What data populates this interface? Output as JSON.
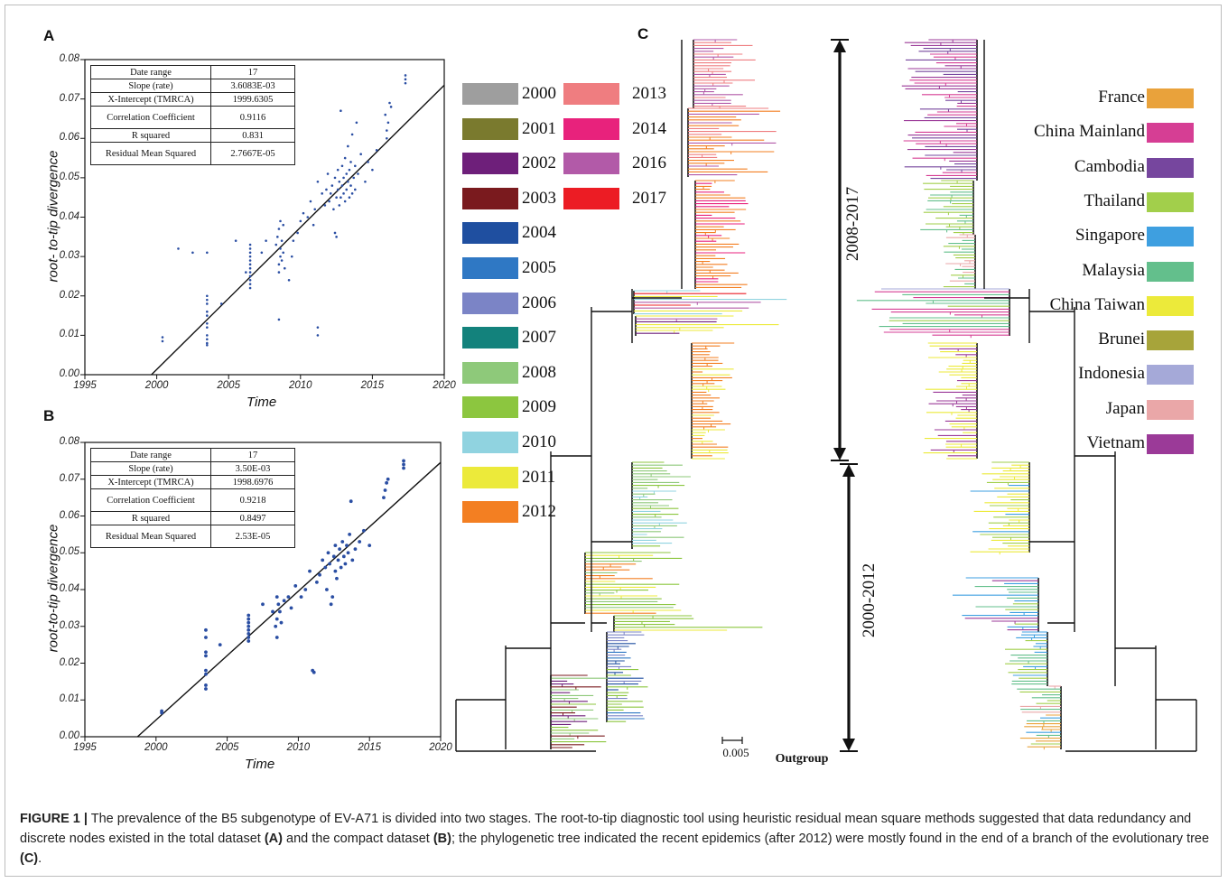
{
  "panels": {
    "A": {
      "letter": "A",
      "stats": [
        [
          "Date range",
          "17"
        ],
        [
          "Slope (rate)",
          "3.6083E-03"
        ],
        [
          "X-Intercept (TMRCA)",
          "1999.6305"
        ],
        [
          "Correlation Coefficient",
          "0.9116"
        ],
        [
          "R squared",
          "0.831"
        ],
        [
          "Residual Mean Squared",
          "2.7667E-05"
        ]
      ]
    },
    "B": {
      "letter": "B",
      "stats": [
        [
          "Date range",
          "17"
        ],
        [
          "Slope (rate)",
          "3.50E-03"
        ],
        [
          "X-Intercept (TMRCA)",
          "1998.6976"
        ],
        [
          "Correlation Coefficient",
          "0.9218"
        ],
        [
          "R squared",
          "0.8497"
        ],
        [
          "Residual Mean Squared",
          "2.53E-05"
        ]
      ]
    },
    "C": {
      "letter": "C"
    }
  },
  "chart_data": [
    {
      "type": "scatter",
      "panel": "A",
      "xlabel": "Time",
      "ylabel": "root- to-tip divergence",
      "xlim": [
        1995,
        2020
      ],
      "ylim": [
        0,
        0.08
      ],
      "xticks": [
        "1995",
        "2000",
        "2005",
        "2010",
        "2015",
        "2020"
      ],
      "yticks": [
        "0.00",
        "0.01",
        "0.02",
        "0.03",
        "0.04",
        "0.05",
        "0.06",
        "0.07",
        "0.08"
      ],
      "regression": {
        "slope": 0.0036083,
        "x_intercept": 1999.6305
      },
      "points": [
        [
          2000.4,
          0.0085
        ],
        [
          2000.4,
          0.0095
        ],
        [
          2001.5,
          0.032
        ],
        [
          2002.5,
          0.031
        ],
        [
          2003.5,
          0.031
        ],
        [
          2003.5,
          0.02
        ],
        [
          2003.5,
          0.019
        ],
        [
          2003.5,
          0.018
        ],
        [
          2003.5,
          0.016
        ],
        [
          2003.5,
          0.015
        ],
        [
          2003.5,
          0.013
        ],
        [
          2003.5,
          0.012
        ],
        [
          2003.5,
          0.01
        ],
        [
          2003.5,
          0.009
        ],
        [
          2003.5,
          0.008
        ],
        [
          2003.5,
          0.0075
        ],
        [
          2004.5,
          0.018
        ],
        [
          2005.5,
          0.034
        ],
        [
          2006.2,
          0.026
        ],
        [
          2006.5,
          0.022
        ],
        [
          2006.5,
          0.023
        ],
        [
          2006.5,
          0.024
        ],
        [
          2006.5,
          0.025
        ],
        [
          2006.5,
          0.026
        ],
        [
          2006.5,
          0.027
        ],
        [
          2006.5,
          0.028
        ],
        [
          2006.5,
          0.029
        ],
        [
          2006.5,
          0.03
        ],
        [
          2006.5,
          0.031
        ],
        [
          2006.5,
          0.032
        ],
        [
          2006.5,
          0.033
        ],
        [
          2007.3,
          0.031
        ],
        [
          2007.6,
          0.034
        ],
        [
          2008.3,
          0.033
        ],
        [
          2008.4,
          0.035
        ],
        [
          2008.5,
          0.037
        ],
        [
          2008.5,
          0.028
        ],
        [
          2008.5,
          0.026
        ],
        [
          2008.6,
          0.03
        ],
        [
          2008.6,
          0.032
        ],
        [
          2008.6,
          0.039
        ],
        [
          2008.7,
          0.034
        ],
        [
          2008.7,
          0.029
        ],
        [
          2008.8,
          0.031
        ],
        [
          2008.8,
          0.038
        ],
        [
          2008.9,
          0.027
        ],
        [
          2008.5,
          0.014
        ],
        [
          2009.2,
          0.024
        ],
        [
          2009.4,
          0.03
        ],
        [
          2009.5,
          0.034
        ],
        [
          2009.8,
          0.036
        ],
        [
          2010.0,
          0.039
        ],
        [
          2010.2,
          0.041
        ],
        [
          2010.5,
          0.04
        ],
        [
          2010.7,
          0.044
        ],
        [
          2010.9,
          0.038
        ],
        [
          2011.0,
          0.042
        ],
        [
          2011.2,
          0.049
        ],
        [
          2011.2,
          0.01
        ],
        [
          2011.2,
          0.012
        ],
        [
          2011.5,
          0.046
        ],
        [
          2011.7,
          0.043
        ],
        [
          2011.8,
          0.047
        ],
        [
          2011.9,
          0.051
        ],
        [
          2012.0,
          0.044
        ],
        [
          2012.1,
          0.046
        ],
        [
          2012.2,
          0.048
        ],
        [
          2012.3,
          0.042
        ],
        [
          2012.4,
          0.05
        ],
        [
          2012.4,
          0.036
        ],
        [
          2012.5,
          0.035
        ],
        [
          2012.5,
          0.045
        ],
        [
          2012.6,
          0.047
        ],
        [
          2012.6,
          0.052
        ],
        [
          2012.7,
          0.043
        ],
        [
          2012.7,
          0.049
        ],
        [
          2012.8,
          0.067
        ],
        [
          2012.8,
          0.045
        ],
        [
          2012.9,
          0.048
        ],
        [
          2012.9,
          0.053
        ],
        [
          2013.0,
          0.046
        ],
        [
          2013.0,
          0.05
        ],
        [
          2013.1,
          0.044
        ],
        [
          2013.1,
          0.055
        ],
        [
          2013.2,
          0.047
        ],
        [
          2013.2,
          0.051
        ],
        [
          2013.3,
          0.049
        ],
        [
          2013.3,
          0.058
        ],
        [
          2013.4,
          0.045
        ],
        [
          2013.4,
          0.052
        ],
        [
          2013.5,
          0.048
        ],
        [
          2013.5,
          0.054
        ],
        [
          2013.6,
          0.046
        ],
        [
          2013.6,
          0.061
        ],
        [
          2013.7,
          0.05
        ],
        [
          2013.8,
          0.053
        ],
        [
          2013.8,
          0.047
        ],
        [
          2013.9,
          0.064
        ],
        [
          2014.0,
          0.051
        ],
        [
          2014.2,
          0.056
        ],
        [
          2014.5,
          0.049
        ],
        [
          2014.7,
          0.054
        ],
        [
          2015.0,
          0.052
        ],
        [
          2015.3,
          0.057
        ],
        [
          2015.9,
          0.066
        ],
        [
          2016.0,
          0.06
        ],
        [
          2016.0,
          0.062
        ],
        [
          2016.1,
          0.064
        ],
        [
          2016.2,
          0.069
        ],
        [
          2016.3,
          0.068
        ],
        [
          2017.3,
          0.074
        ],
        [
          2017.3,
          0.075
        ],
        [
          2017.3,
          0.076
        ]
      ]
    },
    {
      "type": "scatter",
      "panel": "B",
      "xlabel": "Time",
      "ylabel": "root-to-tip divergence",
      "xlim": [
        1995,
        2020
      ],
      "ylim": [
        0,
        0.08
      ],
      "xticks": [
        "1995",
        "2000",
        "2005",
        "2010",
        "2015",
        "2020"
      ],
      "yticks": [
        "0.00",
        "0.01",
        "0.02",
        "0.03",
        "0.04",
        "0.05",
        "0.06",
        "0.07",
        "0.08"
      ],
      "regression": {
        "slope": 0.0035,
        "x_intercept": 1998.6976
      },
      "points": [
        [
          2000.4,
          0.0065
        ],
        [
          2000.4,
          0.007
        ],
        [
          2003.5,
          0.029
        ],
        [
          2003.5,
          0.027
        ],
        [
          2003.5,
          0.023
        ],
        [
          2003.5,
          0.022
        ],
        [
          2003.5,
          0.018
        ],
        [
          2003.5,
          0.017
        ],
        [
          2003.5,
          0.014
        ],
        [
          2003.5,
          0.013
        ],
        [
          2004.5,
          0.025
        ],
        [
          2006.5,
          0.026
        ],
        [
          2006.5,
          0.027
        ],
        [
          2006.5,
          0.028
        ],
        [
          2006.5,
          0.029
        ],
        [
          2006.5,
          0.03
        ],
        [
          2006.5,
          0.031
        ],
        [
          2006.5,
          0.032
        ],
        [
          2006.5,
          0.033
        ],
        [
          2007.5,
          0.036
        ],
        [
          2008.2,
          0.034
        ],
        [
          2008.4,
          0.03
        ],
        [
          2008.5,
          0.032
        ],
        [
          2008.5,
          0.027
        ],
        [
          2008.5,
          0.038
        ],
        [
          2008.6,
          0.036
        ],
        [
          2008.7,
          0.034
        ],
        [
          2008.8,
          0.031
        ],
        [
          2009.0,
          0.037
        ],
        [
          2009.3,
          0.038
        ],
        [
          2009.5,
          0.035
        ],
        [
          2009.8,
          0.041
        ],
        [
          2010.2,
          0.038
        ],
        [
          2010.5,
          0.04
        ],
        [
          2010.8,
          0.045
        ],
        [
          2011.0,
          0.018
        ],
        [
          2011.1,
          0.0175
        ],
        [
          2011.3,
          0.042
        ],
        [
          2011.5,
          0.044
        ],
        [
          2011.7,
          0.048
        ],
        [
          2011.9,
          0.046
        ],
        [
          2012.0,
          0.04
        ],
        [
          2012.1,
          0.05
        ],
        [
          2012.2,
          0.047
        ],
        [
          2012.3,
          0.036
        ],
        [
          2012.4,
          0.038
        ],
        [
          2012.5,
          0.049
        ],
        [
          2012.6,
          0.045
        ],
        [
          2012.6,
          0.052
        ],
        [
          2012.7,
          0.043
        ],
        [
          2012.8,
          0.048
        ],
        [
          2012.9,
          0.051
        ],
        [
          2013.0,
          0.046
        ],
        [
          2013.1,
          0.053
        ],
        [
          2013.2,
          0.049
        ],
        [
          2013.3,
          0.047
        ],
        [
          2013.4,
          0.052
        ],
        [
          2013.5,
          0.05
        ],
        [
          2013.6,
          0.055
        ],
        [
          2013.7,
          0.064
        ],
        [
          2013.8,
          0.048
        ],
        [
          2014.0,
          0.051
        ],
        [
          2014.3,
          0.053
        ],
        [
          2014.6,
          0.056
        ],
        [
          2015.0,
          0.052
        ],
        [
          2016.0,
          0.065
        ],
        [
          2016.1,
          0.067
        ],
        [
          2016.2,
          0.069
        ],
        [
          2016.3,
          0.07
        ],
        [
          2017.4,
          0.073
        ],
        [
          2017.4,
          0.074
        ],
        [
          2017.4,
          0.075
        ]
      ]
    }
  ],
  "year_legend": [
    {
      "label": "2000",
      "color": "#9e9e9e"
    },
    {
      "label": "2001",
      "color": "#7a7a2e"
    },
    {
      "label": "2002",
      "color": "#6e1f7a"
    },
    {
      "label": "2003",
      "color": "#7a1a1e"
    },
    {
      "label": "2004",
      "color": "#1f4fa0"
    },
    {
      "label": "2005",
      "color": "#2f78c4"
    },
    {
      "label": "2006",
      "color": "#7b84c6"
    },
    {
      "label": "2007",
      "color": "#13827c"
    },
    {
      "label": "2008",
      "color": "#8ec97a"
    },
    {
      "label": "2009",
      "color": "#8cc63f"
    },
    {
      "label": "2010",
      "color": "#90d3e0"
    },
    {
      "label": "2011",
      "color": "#ecea3a"
    },
    {
      "label": "2012",
      "color": "#f37f22"
    },
    {
      "label": "2013",
      "color": "#ef7d80"
    },
    {
      "label": "2014",
      "color": "#e8227c"
    },
    {
      "label": "2016",
      "color": "#b25aa8"
    },
    {
      "label": "2017",
      "color": "#ec1c24"
    }
  ],
  "country_legend": [
    {
      "label": "France",
      "color": "#e9a23b"
    },
    {
      "label": "China Mainland",
      "color": "#d63e94"
    },
    {
      "label": "Cambodia",
      "color": "#76469e"
    },
    {
      "label": "Thailand",
      "color": "#a2cf4b"
    },
    {
      "label": "Singapore",
      "color": "#3e9fe0"
    },
    {
      "label": "Malaysia",
      "color": "#63bf8c"
    },
    {
      "label": "China Taiwan",
      "color": "#ecea3a"
    },
    {
      "label": "Brunei",
      "color": "#a7a43a"
    },
    {
      "label": "Indonesia",
      "color": "#a5a9d8"
    },
    {
      "label": "Japan",
      "color": "#eaa7a8"
    },
    {
      "label": "Vietnam",
      "color": "#9b3a98"
    }
  ],
  "tree": {
    "period_upper": "2008-2017",
    "period_lower": "2000-2012",
    "scale_label": "0.005",
    "outgroup_label": "Outgroup"
  },
  "caption": {
    "label": "FIGURE 1 |",
    "t1": " The prevalence of the B5 subgenotype of EV-A71 is divided into two stages. The root-to-tip diagnostic tool using heuristic residual mean square methods suggested that data redundancy and discrete nodes existed in the total dataset ",
    "refA": "(A)",
    "t2": " and the compact dataset ",
    "refB": "(B)",
    "t3": "; the phylogenetic tree indicated the recent epidemics (after 2012) were mostly found in the end of a branch of the evolutionary tree ",
    "refC": "(C)",
    "t4": "."
  }
}
